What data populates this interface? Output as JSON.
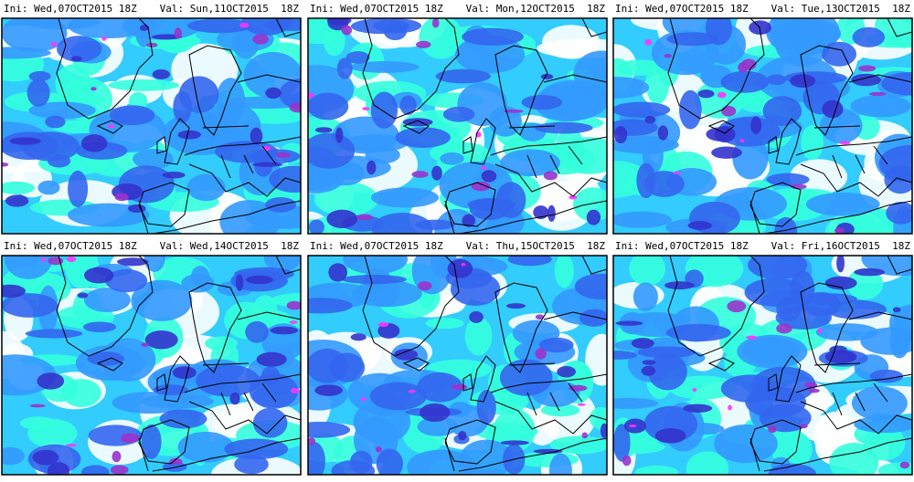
{
  "panels": [
    {
      "ini": "Ini: Wed,07OCT2015 18Z",
      "val": "Val: Sun,11OCT2015  18Z"
    },
    {
      "ini": "Ini: Wed,07OCT2015 18Z",
      "val": "Val: Mon,12OCT2015  18Z"
    },
    {
      "ini": "Ini: Wed,07OCT2015 18Z",
      "val": "Val: Tue,13OCT2015  18Z"
    },
    {
      "ini": "Ini: Wed,07OCT2015 18Z",
      "val": "Val: Wed,14OCT2015  18Z"
    },
    {
      "ini": "Ini: Wed,07OCT2015 18Z",
      "val": "Val: Thu,15OCT2015  18Z"
    },
    {
      "ini": "Ini: Wed,07OCT2015 18Z",
      "val": "Val: Fri,16OCT2015  18Z"
    }
  ]
}
